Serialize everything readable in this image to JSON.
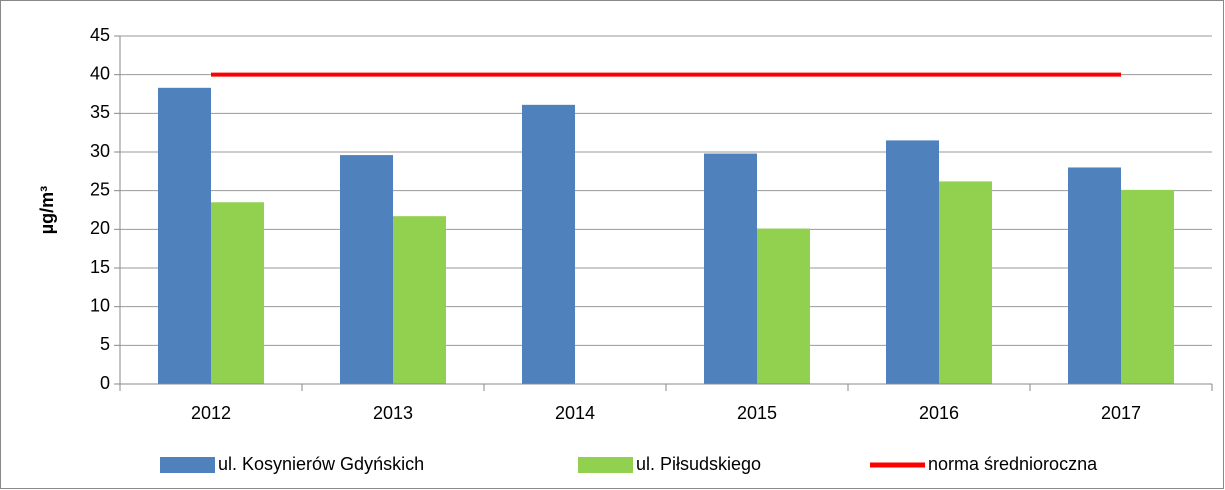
{
  "chart_data": {
    "type": "bar",
    "y_label": "µg/m³",
    "categories": [
      "2012",
      "2013",
      "2014",
      "2015",
      "2016",
      "2017"
    ],
    "series": [
      {
        "name": "ul. Kosynierów Gdyńskich",
        "color": "#4f81bd",
        "values": [
          38.3,
          29.6,
          36.1,
          29.8,
          31.5,
          28.0
        ]
      },
      {
        "name": "ul. Piłsudskiego",
        "color": "#92d050",
        "values": [
          23.5,
          21.7,
          null,
          20.1,
          26.2,
          25.1
        ]
      },
      {
        "name": "norma średnioroczna",
        "color": "#ff0000",
        "type": "line",
        "values": [
          40,
          40,
          40,
          40,
          40,
          40
        ]
      }
    ],
    "ylim": [
      0,
      45
    ],
    "yticks": [
      0,
      5,
      10,
      15,
      20,
      25,
      30,
      35,
      40,
      45
    ],
    "grid": true,
    "legend": "bottom"
  }
}
